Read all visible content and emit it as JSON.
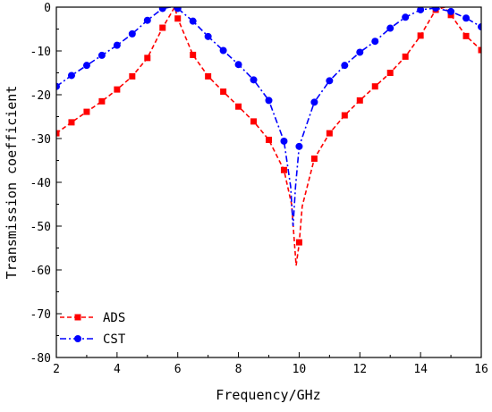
{
  "chart_data": {
    "type": "line",
    "xlabel": "Frequency/GHz",
    "ylabel": "Transmission coefficient",
    "xlim": [
      2,
      16
    ],
    "ylim": [
      -80,
      0
    ],
    "xticks": [
      2,
      4,
      6,
      8,
      10,
      12,
      14,
      16
    ],
    "yticks": [
      0,
      -10,
      -20,
      -30,
      -40,
      -50,
      -60,
      -70,
      -80
    ],
    "grid": false,
    "legend_position": "bottom-left",
    "series": [
      {
        "name": "ADS",
        "color": "#ff0000",
        "line_style": "dashed",
        "marker": "square",
        "x": [
          2,
          2.5,
          3,
          3.5,
          4,
          4.5,
          5,
          5.5,
          6,
          6.5,
          7,
          7.5,
          8,
          8.5,
          9,
          9.5,
          10,
          10.5,
          11,
          11.5,
          12,
          12.5,
          13,
          13.5,
          14,
          14.5,
          15,
          15.5,
          16
        ],
        "values": [
          -28.8,
          -26.3,
          -23.9,
          -21.5,
          -18.8,
          -15.8,
          -11.6,
          -4.7,
          -2.6,
          -10.9,
          -15.8,
          -19.3,
          -22.7,
          -26.1,
          -30.3,
          -37.2,
          -53.7,
          -34.6,
          -28.8,
          -24.7,
          -21.3,
          -18.1,
          -15.0,
          -11.3,
          -6.5,
          -0.6,
          -1.8,
          -6.6,
          -9.8
        ],
        "curve_x": [
          2,
          2.5,
          3,
          3.5,
          4,
          4.5,
          5,
          5.5,
          5.9,
          6,
          6.5,
          7,
          7.5,
          8,
          8.5,
          9,
          9.5,
          9.75,
          9.9,
          10,
          10.1,
          10.5,
          11,
          11.5,
          12,
          12.5,
          13,
          13.5,
          14,
          14.5,
          14.8,
          15,
          15.5,
          16
        ],
        "curve_y": [
          -28.8,
          -26.3,
          -23.9,
          -21.5,
          -18.8,
          -15.8,
          -11.6,
          -4.7,
          0,
          -2.6,
          -10.9,
          -15.8,
          -19.3,
          -22.7,
          -26.1,
          -30.3,
          -37.2,
          -45,
          -59,
          -54,
          -45.5,
          -34.6,
          -28.8,
          -24.7,
          -21.3,
          -18.1,
          -15.0,
          -11.3,
          -6.5,
          -0.6,
          0,
          -1.8,
          -6.6,
          -9.8
        ]
      },
      {
        "name": "CST",
        "color": "#0000ff",
        "line_style": "dash-dot",
        "marker": "circle",
        "x": [
          2,
          2.5,
          3,
          3.5,
          4,
          4.5,
          5,
          5.5,
          6,
          6.5,
          7,
          7.5,
          8,
          8.5,
          9,
          9.5,
          10,
          10.5,
          11,
          11.5,
          12,
          12.5,
          13,
          13.5,
          14,
          14.5,
          15,
          15.5,
          16
        ],
        "values": [
          -18.1,
          -15.6,
          -13.3,
          -11.0,
          -8.7,
          -6.1,
          -3.0,
          -0.3,
          -0.3,
          -3.2,
          -6.7,
          -9.9,
          -13.1,
          -16.6,
          -21.3,
          -30.6,
          -31.8,
          -21.7,
          -16.8,
          -13.3,
          -10.3,
          -7.8,
          -4.8,
          -2.3,
          -0.6,
          -0.2,
          -1.0,
          -2.5,
          -4.5
        ],
        "curve_x": [
          2,
          2.5,
          3,
          3.5,
          4,
          4.5,
          5,
          5.5,
          5.75,
          6,
          6.5,
          7,
          7.5,
          8,
          8.5,
          9,
          9.5,
          9.72,
          9.8,
          9.88,
          10,
          10.5,
          11,
          11.5,
          12,
          12.5,
          13,
          13.5,
          14,
          14.5,
          15,
          15.5,
          16
        ],
        "curve_y": [
          -18.1,
          -15.6,
          -13.3,
          -11.0,
          -8.7,
          -6.1,
          -3.0,
          -0.3,
          0,
          -0.3,
          -3.2,
          -6.7,
          -9.9,
          -13.1,
          -16.6,
          -21.3,
          -30.6,
          -41,
          -50,
          -41,
          -31.8,
          -21.7,
          -16.8,
          -13.3,
          -10.3,
          -7.8,
          -4.8,
          -2.3,
          -0.6,
          -0.2,
          -1.0,
          -2.5,
          -4.5
        ]
      }
    ]
  }
}
